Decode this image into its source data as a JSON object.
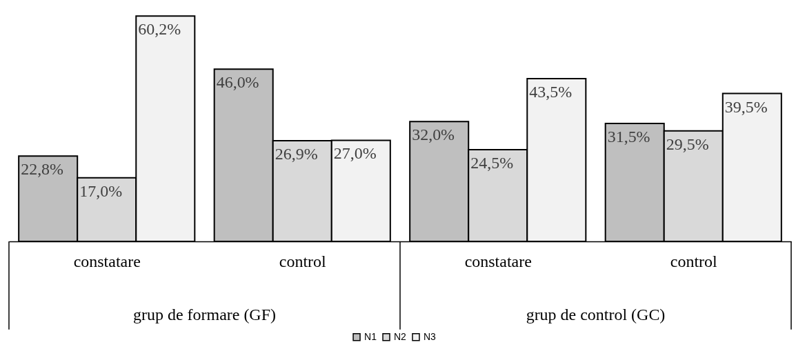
{
  "chart_data": {
    "type": "bar",
    "categories": [
      "constatare",
      "control",
      "constatare",
      "control"
    ],
    "annotations": [
      "grup de formare (GF)",
      "grup de control (GC)"
    ],
    "series": [
      {
        "name": "N1",
        "color": "#bfbfbf",
        "values": [
          22.8,
          46.0,
          32.0,
          31.5
        ],
        "value_labels": [
          "22,8%",
          "46,0%",
          "32,0%",
          "31,5%"
        ]
      },
      {
        "name": "N2",
        "color": "#d9d9d9",
        "values": [
          17.0,
          26.9,
          24.5,
          29.5
        ],
        "value_labels": [
          "17,0%",
          "26,9%",
          "24,5%",
          "29,5%"
        ]
      },
      {
        "name": "N3",
        "color": "#f2f2f2",
        "values": [
          60.2,
          27.0,
          43.5,
          39.5
        ],
        "value_labels": [
          "60,2%",
          "27,0%",
          "43,5%",
          "39,5%"
        ]
      }
    ],
    "legend": "bottom",
    "grid": false
  }
}
